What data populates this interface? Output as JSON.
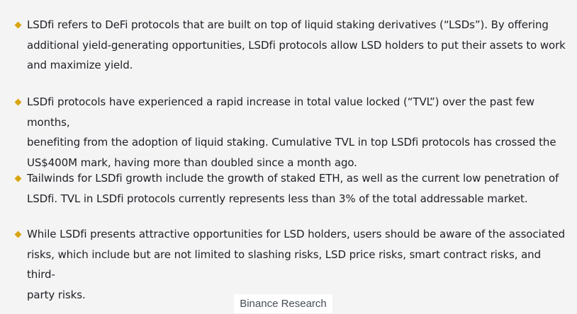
{
  "bullets": [
    {
      "lines": [
        "LSDfi refers to DeFi protocols that are built on top of liquid staking derivatives (“LSDs”). By offering",
        "additional yield-generating opportunities, LSDfi protocols allow LSD holders to put their assets to work",
        "and maximize yield."
      ]
    },
    {
      "lines": [
        "LSDfi protocols have experienced a rapid increase in total value locked (“TVL”) over the past few months,",
        "benefiting from the adoption of liquid staking. Cumulative TVL in top LSDfi protocols has crossed the",
        "US$400M mark, having more than doubled since a month ago."
      ]
    },
    {
      "lines": [
        "Tailwinds for LSDfi growth include the growth of staked ETH, as well as the current low penetration of",
        "LSDfi. TVL in LSDfi protocols currently represents less than 3% of the total addressable market."
      ]
    },
    {
      "lines": [
        "While LSDfi presents attractive opportunities for LSD holders, users should be aware of the associated",
        "risks, which include but are not limited to slashing risks, LSD price risks, smart contract risks, and third-",
        "party risks."
      ]
    }
  ],
  "caption": "Binance Research",
  "colors": {
    "background": "#f4f4f4",
    "bullet": "#d9a50f",
    "text": "#1e2026",
    "caption_bg": "#ffffff"
  }
}
